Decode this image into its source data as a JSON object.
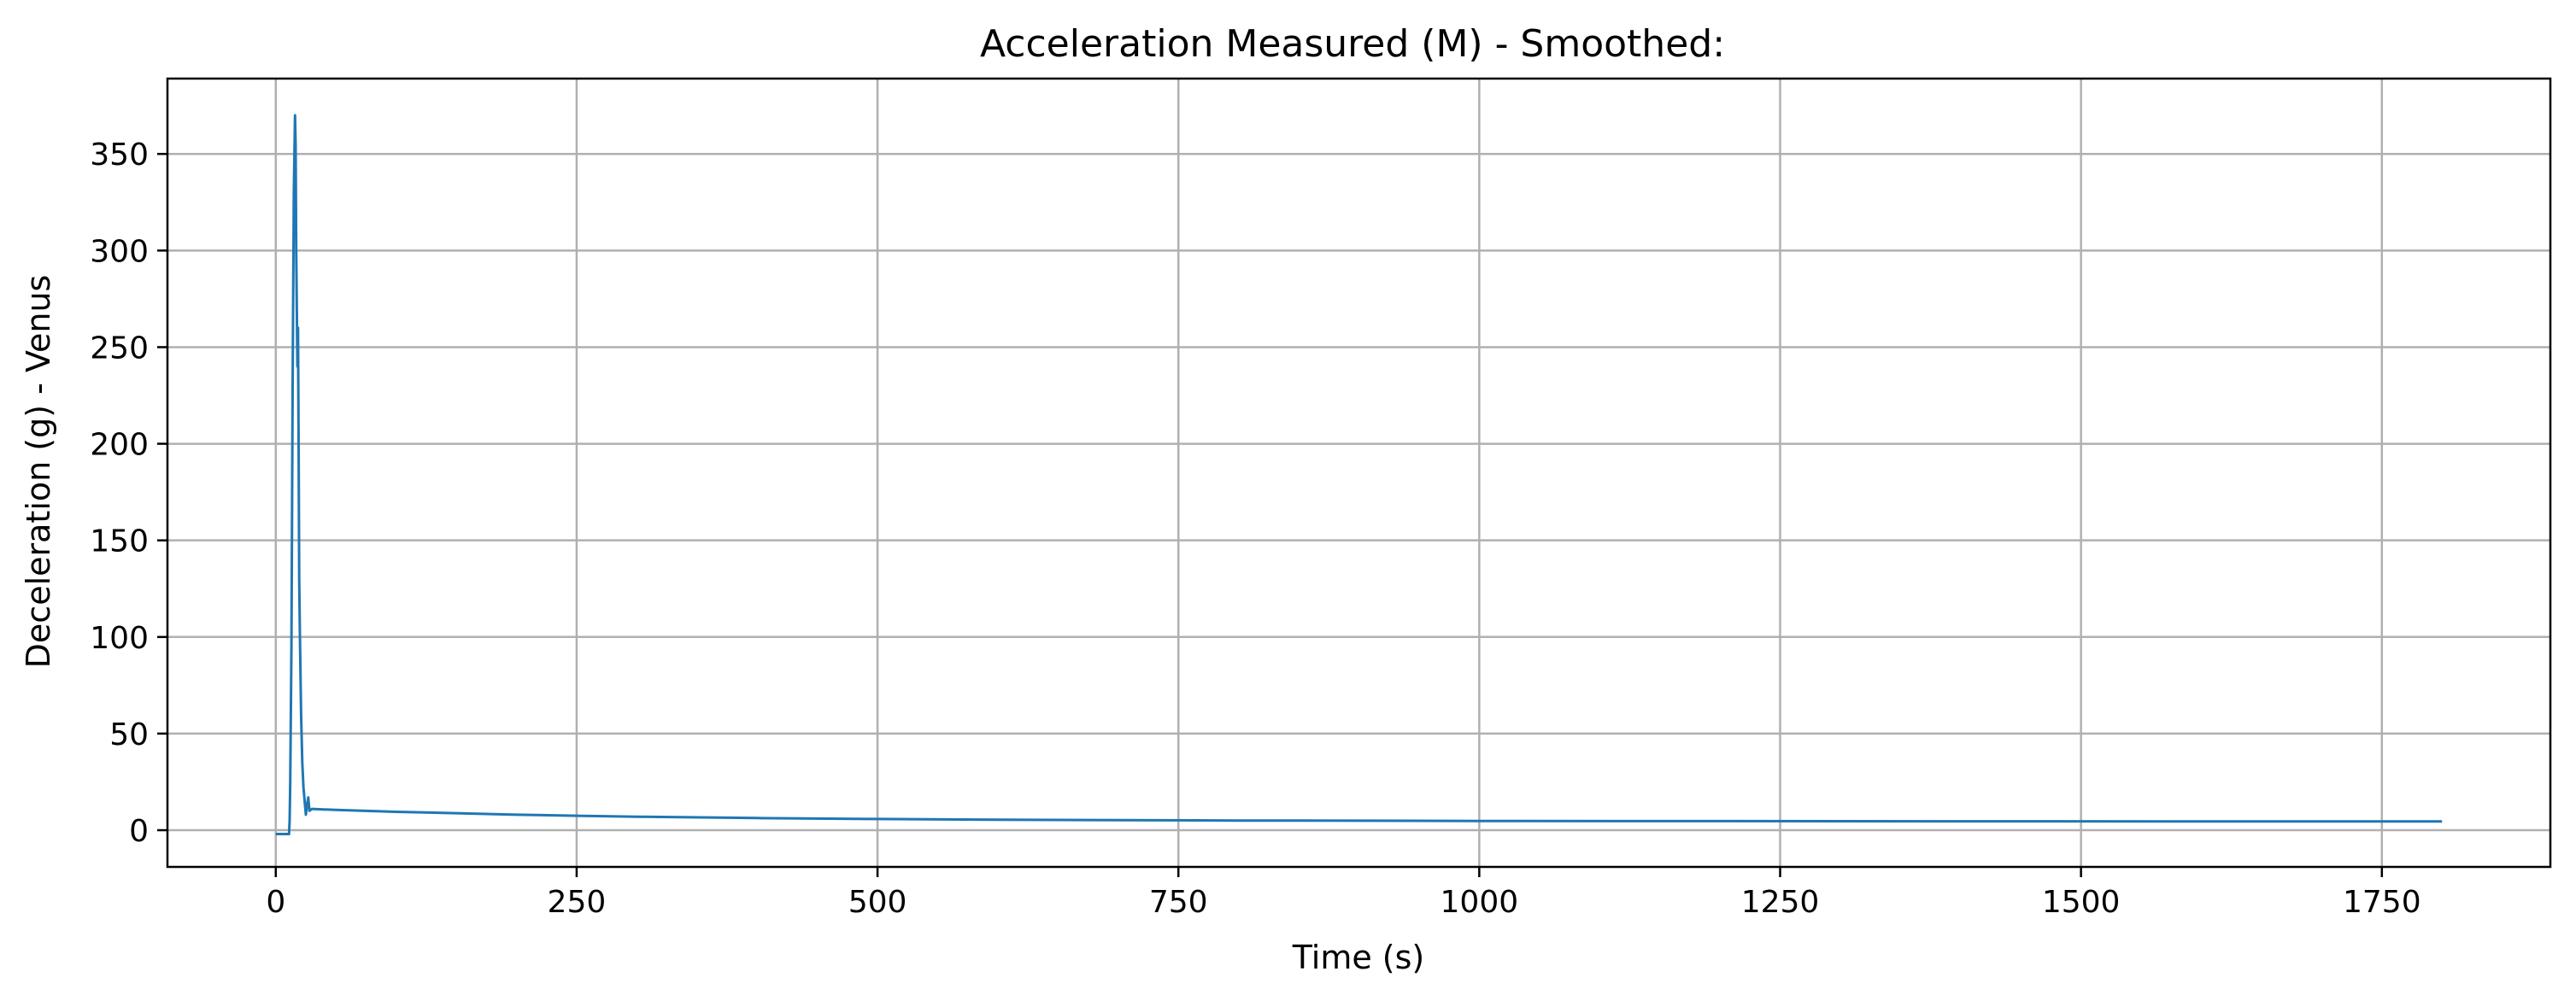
{
  "chart_data": {
    "type": "line",
    "title": "Acceleration Measured (M) - Smoothed:",
    "xlabel": "Time (s)",
    "ylabel": "Deceleration (g) - Venus",
    "xlim": [
      -90,
      1890
    ],
    "ylim": [
      -19,
      389
    ],
    "grid": true,
    "x_ticks": [
      0,
      250,
      500,
      750,
      1000,
      1250,
      1500,
      1750
    ],
    "y_ticks": [
      0,
      50,
      100,
      150,
      200,
      250,
      300,
      350
    ],
    "x_tick_labels": [
      "0",
      "250",
      "500",
      "750",
      "1000",
      "1250",
      "1500",
      "1750"
    ],
    "y_tick_labels": [
      "0",
      "50",
      "100",
      "150",
      "200",
      "250",
      "300",
      "350"
    ],
    "colors": {
      "series": "#1f77b4",
      "grid": "#b0b0b0",
      "frame": "#000000"
    },
    "series": [
      {
        "x": [
          0,
          11,
          11.5,
          12,
          13,
          14,
          15,
          16,
          16.5,
          17,
          17.5,
          18,
          18.5,
          19,
          19.5,
          20,
          21,
          22,
          23,
          24,
          25,
          26,
          27,
          28,
          30,
          50,
          75,
          100,
          150,
          200,
          250,
          300,
          400,
          500,
          600,
          700,
          800,
          900,
          1000,
          1200,
          1400,
          1600,
          1800
        ],
        "y": [
          -2,
          -2,
          5,
          25,
          95,
          230,
          330,
          370,
          355,
          300,
          270,
          240,
          260,
          200,
          130,
          105,
          60,
          35,
          22,
          15,
          8,
          13,
          17,
          10,
          11,
          10.5,
          10,
          9.5,
          8.8,
          8,
          7.5,
          7,
          6.3,
          5.8,
          5.4,
          5.2,
          5,
          4.9,
          4.8,
          4.7,
          4.6,
          4.5,
          4.5
        ]
      }
    ]
  }
}
